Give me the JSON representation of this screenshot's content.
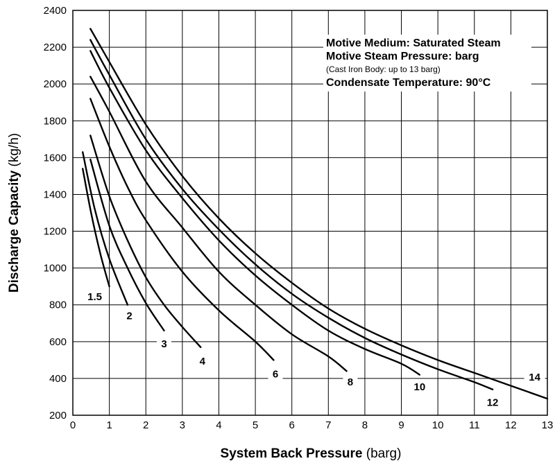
{
  "chart_data": {
    "type": "line",
    "xlabel_bold": "System Back Pressure",
    "xlabel_unit": " (barg)",
    "ylabel_bold": "Discharge Capacity",
    "ylabel_unit": " (kg/h)",
    "xlim": [
      0,
      13
    ],
    "ylim": [
      200,
      2400
    ],
    "x_ticks": [
      "0",
      "1",
      "2",
      "3",
      "4",
      "5",
      "6",
      "7",
      "8",
      "9",
      "10",
      "11",
      "12",
      "13"
    ],
    "y_ticks": [
      "200",
      "400",
      "600",
      "800",
      "1000",
      "1200",
      "1400",
      "1600",
      "1800",
      "2000",
      "2200",
      "2400"
    ],
    "grid": true,
    "legend": {
      "lines": [
        {
          "text": "Motive Medium: Saturated Steam",
          "style": "bold"
        },
        {
          "text": "Motive Steam Pressure: barg",
          "style": "bold"
        },
        {
          "text": "(Cast Iron Body: up to 13 barg)",
          "style": "small"
        },
        {
          "text": "Condensate Temperature: 90°C",
          "style": "bold"
        }
      ],
      "placement": "top-right"
    },
    "series": [
      {
        "name": "1.5",
        "x": [
          0.27,
          0.5,
          0.75,
          1.0
        ],
        "y": [
          1540,
          1300,
          1080,
          900
        ],
        "label_at": [
          0.6,
          830
        ]
      },
      {
        "name": "2",
        "x": [
          0.27,
          0.6,
          1.0,
          1.5
        ],
        "y": [
          1630,
          1320,
          1050,
          800
        ],
        "label_at": [
          1.55,
          725
        ]
      },
      {
        "name": "3",
        "x": [
          0.48,
          1.0,
          1.5,
          2.0,
          2.5
        ],
        "y": [
          1590,
          1230,
          1000,
          810,
          660
        ],
        "label_at": [
          2.5,
          573
        ]
      },
      {
        "name": "4",
        "x": [
          0.48,
          1.0,
          1.5,
          2.0,
          2.5,
          3.0,
          3.5
        ],
        "y": [
          1720,
          1390,
          1150,
          950,
          800,
          680,
          570
        ],
        "label_at": [
          3.55,
          478
        ]
      },
      {
        "name": "6",
        "x": [
          0.48,
          1.0,
          1.5,
          2.0,
          3.0,
          4.0,
          5.0,
          5.5
        ],
        "y": [
          1920,
          1660,
          1440,
          1260,
          980,
          770,
          600,
          500
        ],
        "label_at": [
          5.55,
          410
        ]
      },
      {
        "name": "8",
        "x": [
          0.48,
          1.0,
          2.0,
          3.0,
          4.0,
          5.0,
          6.0,
          7.0,
          7.5
        ],
        "y": [
          2040,
          1850,
          1470,
          1220,
          980,
          800,
          640,
          520,
          440
        ],
        "label_at": [
          7.6,
          365
        ]
      },
      {
        "name": "10",
        "x": [
          0.48,
          1.0,
          2.0,
          3.0,
          4.0,
          5.0,
          6.0,
          7.0,
          8.0,
          9.0,
          9.5
        ],
        "y": [
          2180,
          1980,
          1640,
          1380,
          1150,
          960,
          800,
          660,
          560,
          480,
          420
        ],
        "label_at": [
          9.5,
          340
        ]
      },
      {
        "name": "12",
        "x": [
          0.48,
          1.0,
          2.0,
          3.0,
          4.0,
          5.0,
          6.0,
          7.0,
          8.0,
          9.0,
          10.0,
          11.0,
          11.5
        ],
        "y": [
          2240,
          2050,
          1700,
          1430,
          1210,
          1020,
          860,
          730,
          620,
          530,
          450,
          380,
          340
        ],
        "label_at": [
          11.5,
          255
        ]
      },
      {
        "name": "14",
        "x": [
          0.48,
          1.0,
          2.0,
          3.0,
          4.0,
          5.0,
          6.0,
          7.0,
          8.0,
          9.0,
          10.0,
          11.0,
          12.0,
          13.0
        ],
        "y": [
          2300,
          2120,
          1780,
          1500,
          1270,
          1080,
          920,
          780,
          670,
          580,
          500,
          430,
          360,
          290
        ],
        "label_at": [
          12.65,
          393
        ]
      }
    ]
  }
}
